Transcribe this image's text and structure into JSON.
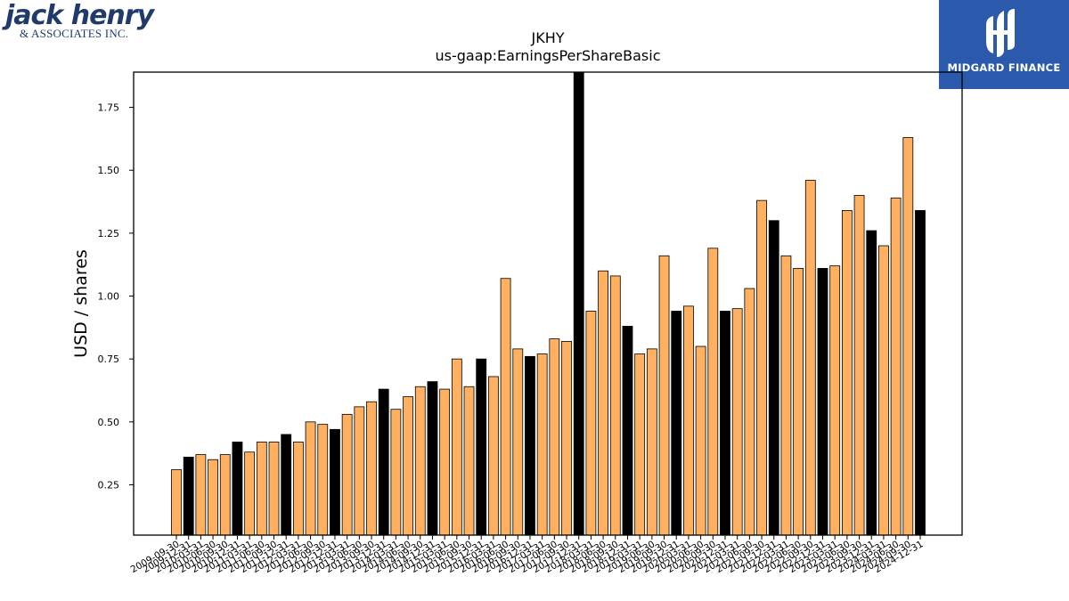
{
  "logos": {
    "left_main": "jack henry",
    "left_sub": "& ASSOCIATES INC.",
    "right": "MIDGARD FINANCE"
  },
  "colors": {
    "bar_fill": "#ffb060",
    "highlight_fill": "#000000",
    "edge": "#000000",
    "brand_blue": "#2b5aad"
  },
  "chart_data": {
    "type": "bar",
    "title": "JKHY",
    "subtitle": "us-gaap:EarningsPerShareBasic",
    "xlabel": "",
    "ylabel": "USD / shares",
    "ylim": [
      0.05,
      1.89
    ],
    "yticks": [
      0.25,
      0.5,
      0.75,
      1.0,
      1.25,
      1.5,
      1.75
    ],
    "ytick_labels": [
      "0.25",
      "0.50",
      "0.75",
      "1.00",
      "1.25",
      "1.50",
      "1.75"
    ],
    "grid": false,
    "legend": "none",
    "categories": [
      "2009-09-30",
      "2009-12-31",
      "2010-03-31",
      "2010-06-30",
      "2010-09-30",
      "2010-12-31",
      "2011-03-31",
      "2011-06-30",
      "2011-09-30",
      "2011-12-31",
      "2012-03-31",
      "2012-06-30",
      "2012-09-30",
      "2012-12-31",
      "2013-03-31",
      "2013-06-30",
      "2013-09-30",
      "2013-12-31",
      "2014-03-31",
      "2014-06-30",
      "2014-09-30",
      "2014-12-31",
      "2015-03-31",
      "2015-06-30",
      "2015-09-30",
      "2015-12-31",
      "2016-03-31",
      "2016-06-30",
      "2016-09-30",
      "2016-12-31",
      "2017-03-31",
      "2017-06-30",
      "2017-09-30",
      "2017-12-31",
      "2018-03-31",
      "2018-06-30",
      "2018-09-30",
      "2018-12-31",
      "2019-03-31",
      "2019-06-30",
      "2019-09-30",
      "2019-12-31",
      "2020-03-31",
      "2020-06-30",
      "2020-09-30",
      "2020-12-31",
      "2021-03-31",
      "2021-06-30",
      "2021-09-30",
      "2021-12-31",
      "2022-03-31",
      "2022-06-30",
      "2022-09-30",
      "2022-12-31",
      "2023-03-31",
      "2023-06-30",
      "2023-09-30",
      "2023-12-31",
      "2024-03-31",
      "2024-06-30",
      "2024-09-30",
      "2024-12-31"
    ],
    "values": [
      0.31,
      0.36,
      0.37,
      0.35,
      0.37,
      0.42,
      0.38,
      0.42,
      0.42,
      0.45,
      0.42,
      0.5,
      0.49,
      0.47,
      0.53,
      0.56,
      0.58,
      0.63,
      0.55,
      0.6,
      0.64,
      0.66,
      0.63,
      0.75,
      0.64,
      0.75,
      0.68,
      1.07,
      0.79,
      0.76,
      0.77,
      0.83,
      0.82,
      1.89,
      0.94,
      1.1,
      1.08,
      0.88,
      0.77,
      0.79,
      1.16,
      0.94,
      0.96,
      0.8,
      1.19,
      0.94,
      0.95,
      1.03,
      1.38,
      1.3,
      1.16,
      1.11,
      1.46,
      1.11,
      1.12,
      1.34,
      1.4,
      1.26,
      1.2,
      1.39,
      1.63,
      1.34
    ],
    "highlighted_indices": [
      1,
      5,
      9,
      13,
      17,
      21,
      25,
      29,
      33,
      37,
      41,
      45,
      49,
      53,
      57,
      61
    ]
  }
}
